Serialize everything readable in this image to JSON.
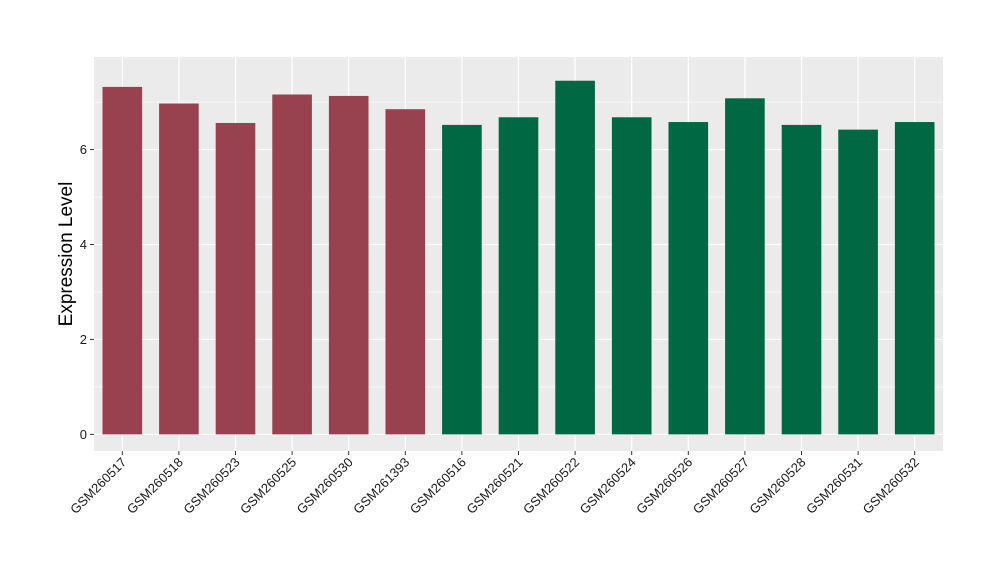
{
  "chart_data": {
    "type": "bar",
    "title": "",
    "xlabel": "",
    "ylabel": "Expression Level",
    "ylim": [
      -0.35,
      7.95
    ],
    "yticks": [
      0,
      2,
      4,
      6
    ],
    "grid": true,
    "legend": "none",
    "categories": [
      "GSM260517",
      "GSM260518",
      "GSM260523",
      "GSM260525",
      "GSM260530",
      "GSM261393",
      "GSM260516",
      "GSM260521",
      "GSM260522",
      "GSM260524",
      "GSM260526",
      "GSM260527",
      "GSM260528",
      "GSM260531",
      "GSM260532"
    ],
    "values": [
      7.32,
      6.97,
      6.56,
      7.16,
      7.13,
      6.85,
      6.52,
      6.68,
      7.45,
      6.68,
      6.58,
      7.08,
      6.52,
      6.42,
      6.58
    ],
    "groups": [
      0,
      0,
      0,
      0,
      0,
      0,
      1,
      1,
      1,
      1,
      1,
      1,
      1,
      1,
      1
    ],
    "group_colors": [
      "#99424f",
      "#006843"
    ],
    "panel_color": "#ebebeb",
    "grid_color": "#ffffff"
  }
}
